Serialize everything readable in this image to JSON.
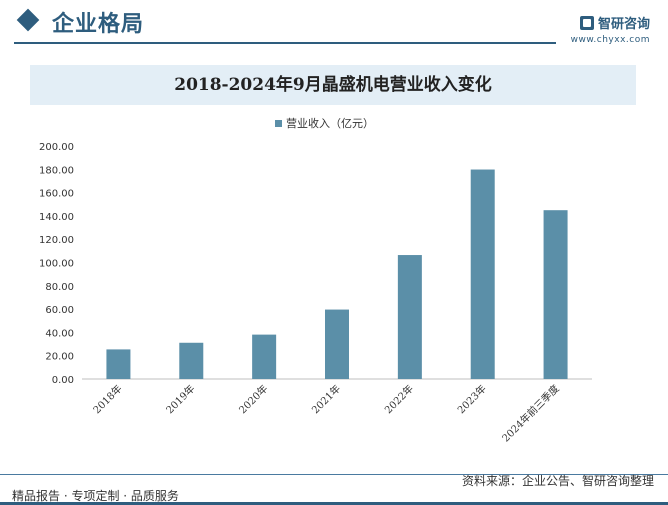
{
  "header": {
    "section_title": "企业格局",
    "brand_name": "智研咨询",
    "brand_url": "www.chyxx.com"
  },
  "colors": {
    "accent": "#2e5d7e",
    "bar": "#5b8fa8",
    "banner": "#e3eef6"
  },
  "chart_data": {
    "type": "bar",
    "title": "2018-2024年9月晶盛机电营业收入变化",
    "categories": [
      "2018年",
      "2019年",
      "2020年",
      "2021年",
      "2022年",
      "2023年",
      "2024年前三季度"
    ],
    "series": [
      {
        "name": "营业收入（亿元）",
        "values": [
          25.4,
          31.1,
          38.1,
          59.6,
          106.4,
          179.8,
          144.9
        ]
      }
    ],
    "yticks": [
      "0.00",
      "20.00",
      "40.00",
      "60.00",
      "80.00",
      "100.00",
      "120.00",
      "140.00",
      "160.00",
      "180.00",
      "200.00"
    ],
    "ylim": [
      0,
      200
    ],
    "legend_position": "top",
    "grid": false
  },
  "footer": {
    "source": "资料来源：企业公告、智研咨询整理",
    "slogan": "精品报告 · 专项定制 · 品质服务"
  }
}
